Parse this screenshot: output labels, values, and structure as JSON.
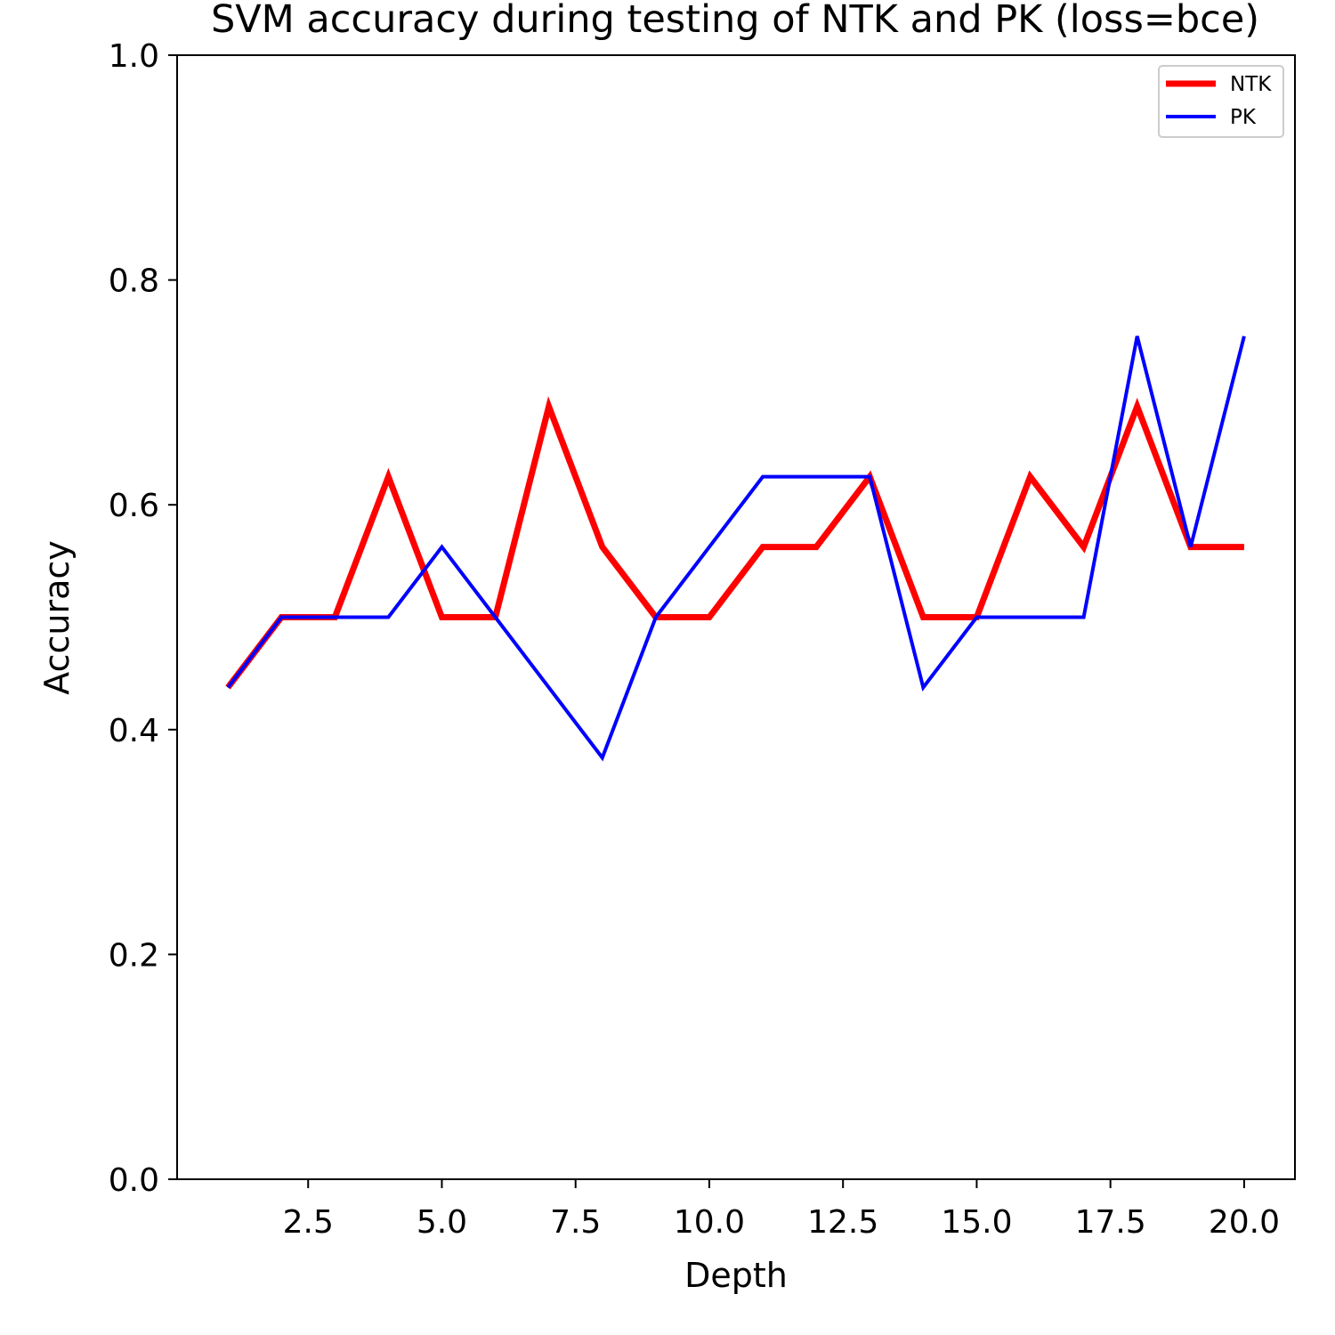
{
  "chart_data": {
    "type": "line",
    "title": "SVM accuracy during testing of NTK and PK (loss=bce)",
    "xlabel": "Depth",
    "ylabel": "Accuracy",
    "xlim": [
      0.05,
      20.95
    ],
    "ylim": [
      0.0,
      1.0
    ],
    "x_ticks": [
      2.5,
      5.0,
      7.5,
      10.0,
      12.5,
      15.0,
      17.5,
      20.0
    ],
    "x_tick_labels": [
      "2.5",
      "5.0",
      "7.5",
      "10.0",
      "12.5",
      "15.0",
      "17.5",
      "20.0"
    ],
    "y_ticks": [
      0.0,
      0.2,
      0.4,
      0.6,
      0.8,
      1.0
    ],
    "y_tick_labels": [
      "0.0",
      "0.2",
      "0.4",
      "0.6",
      "0.8",
      "1.0"
    ],
    "grid": false,
    "legend_position": "top-right",
    "x": [
      1,
      2,
      3,
      4,
      5,
      6,
      7,
      8,
      9,
      10,
      11,
      12,
      13,
      14,
      15,
      16,
      17,
      18,
      19,
      20
    ],
    "series": [
      {
        "name": "NTK",
        "color": "#ff0000",
        "values": [
          0.4375,
          0.5,
          0.5,
          0.625,
          0.5,
          0.5,
          0.6875,
          0.5625,
          0.5,
          0.5,
          0.5625,
          0.5625,
          0.625,
          0.5,
          0.5,
          0.625,
          0.5625,
          0.6875,
          0.5625,
          0.5625
        ]
      },
      {
        "name": "PK",
        "color": "#0000ff",
        "values": [
          0.4375,
          0.5,
          0.5,
          0.5,
          0.5625,
          0.5,
          0.4375,
          0.375,
          0.5,
          0.5625,
          0.625,
          0.625,
          0.625,
          0.4375,
          0.5,
          0.5,
          0.5,
          0.75,
          0.5625,
          0.75
        ]
      }
    ]
  }
}
